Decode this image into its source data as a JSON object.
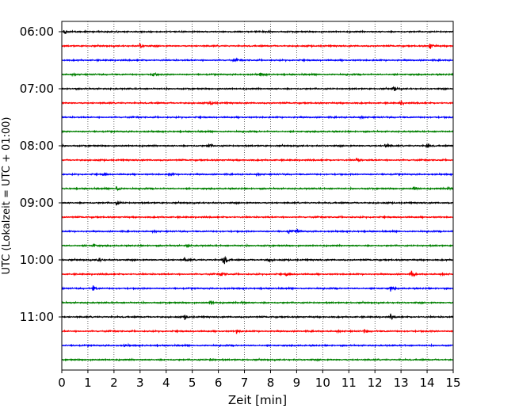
{
  "chart_data": {
    "type": "line",
    "title": "",
    "xlabel": "Zeit  [min]",
    "ylabel": "UTC (Lokalzeit = UTC + 01:00)",
    "xlim": [
      0,
      15
    ],
    "x_ticks": [
      "0",
      "1",
      "2",
      "3",
      "4",
      "5",
      "6",
      "7",
      "8",
      "9",
      "10",
      "11",
      "12",
      "13",
      "14",
      "15"
    ],
    "y_ticks": [
      "06:00",
      "07:00",
      "08:00",
      "09:00",
      "10:00",
      "11:00"
    ],
    "grid": "vertical dotted lines at each minute",
    "trace_interval_minutes": 15,
    "trace_start": "06:00",
    "trace_count": 24,
    "color_cycle": [
      "#000000",
      "#ff0000",
      "#0000ff",
      "#008000"
    ],
    "events": [
      {
        "trace": 0,
        "x": 0.1,
        "amp": 1.0
      },
      {
        "trace": 1,
        "x": 3.0,
        "amp": 0.9
      },
      {
        "trace": 1,
        "x": 14.1,
        "amp": 1.6
      },
      {
        "trace": 2,
        "x": 6.6,
        "amp": 0.7
      },
      {
        "trace": 3,
        "x": 3.5,
        "amp": 0.9
      },
      {
        "trace": 3,
        "x": 7.6,
        "amp": 0.9
      },
      {
        "trace": 4,
        "x": 12.7,
        "amp": 1.2
      },
      {
        "trace": 5,
        "x": 5.7,
        "amp": 0.8
      },
      {
        "trace": 5,
        "x": 13.0,
        "amp": 0.7
      },
      {
        "trace": 8,
        "x": 5.6,
        "amp": 0.9
      },
      {
        "trace": 8,
        "x": 12.4,
        "amp": 1.0
      },
      {
        "trace": 8,
        "x": 14.0,
        "amp": 0.9
      },
      {
        "trace": 9,
        "x": 11.3,
        "amp": 0.9
      },
      {
        "trace": 10,
        "x": 1.6,
        "amp": 0.6
      },
      {
        "trace": 10,
        "x": 4.1,
        "amp": 0.7
      },
      {
        "trace": 11,
        "x": 2.1,
        "amp": 1.0
      },
      {
        "trace": 11,
        "x": 13.5,
        "amp": 1.1
      },
      {
        "trace": 11,
        "x": 14.8,
        "amp": 1.0
      },
      {
        "trace": 12,
        "x": 2.1,
        "amp": 1.0
      },
      {
        "trace": 14,
        "x": 8.7,
        "amp": 1.0
      },
      {
        "trace": 14,
        "x": 9.0,
        "amp": 0.8
      },
      {
        "trace": 15,
        "x": 1.2,
        "amp": 0.6
      },
      {
        "trace": 15,
        "x": 4.8,
        "amp": 0.6
      },
      {
        "trace": 16,
        "x": 1.4,
        "amp": 1.0
      },
      {
        "trace": 16,
        "x": 4.7,
        "amp": 1.0
      },
      {
        "trace": 16,
        "x": 6.2,
        "amp": 3.0
      },
      {
        "trace": 16,
        "x": 7.9,
        "amp": 0.9
      },
      {
        "trace": 17,
        "x": 6.1,
        "amp": 1.0
      },
      {
        "trace": 17,
        "x": 8.6,
        "amp": 0.9
      },
      {
        "trace": 17,
        "x": 13.4,
        "amp": 1.2
      },
      {
        "trace": 18,
        "x": 1.2,
        "amp": 1.1
      },
      {
        "trace": 18,
        "x": 12.6,
        "amp": 0.9
      },
      {
        "trace": 19,
        "x": 5.7,
        "amp": 0.7
      },
      {
        "trace": 19,
        "x": 6.9,
        "amp": 0.6
      },
      {
        "trace": 20,
        "x": 4.7,
        "amp": 0.9
      },
      {
        "trace": 20,
        "x": 12.6,
        "amp": 0.9
      },
      {
        "trace": 21,
        "x": 6.7,
        "amp": 0.9
      },
      {
        "trace": 21,
        "x": 11.6,
        "amp": 0.8
      },
      {
        "trace": 22,
        "x": 2.4,
        "amp": 0.5
      },
      {
        "trace": 23,
        "x": 5.7,
        "amp": 0.5
      }
    ]
  }
}
